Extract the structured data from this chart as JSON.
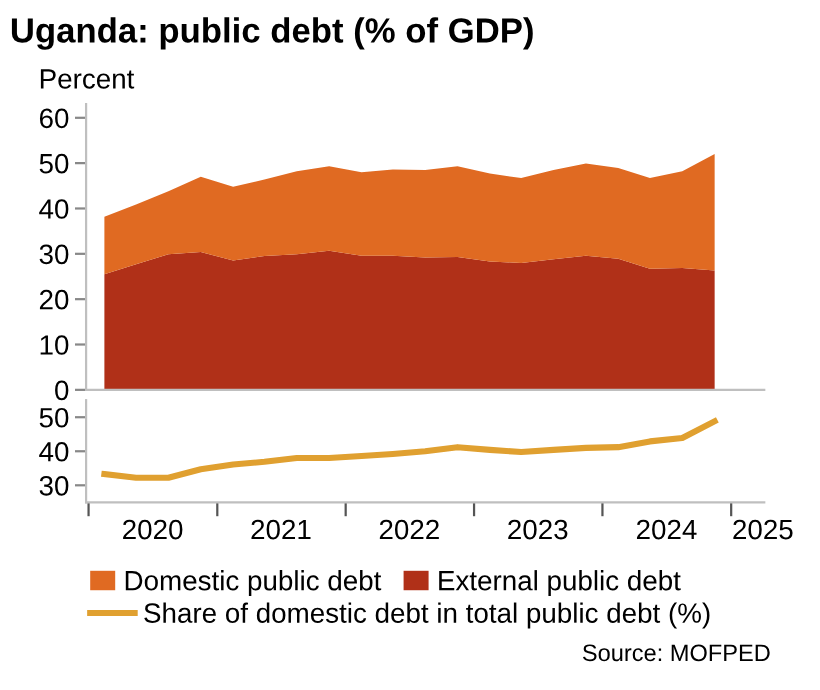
{
  "chart_data": [
    {
      "type": "area",
      "title": "Uganda: public debt (% of GDP)",
      "ylabel": "Percent",
      "stacked": true,
      "x": [
        "2020-02-15",
        "2020-05-15",
        "2020-08-15",
        "2020-11-15",
        "2021-02-15",
        "2021-05-15",
        "2021-08-15",
        "2021-11-15",
        "2022-02-15",
        "2022-05-15",
        "2022-08-15",
        "2022-11-15",
        "2023-02-15",
        "2023-05-15",
        "2023-08-15",
        "2023-11-15",
        "2024-02-15",
        "2024-05-15",
        "2024-08-15",
        "2024-11-15"
      ],
      "series": [
        {
          "name": "External public debt",
          "color": "#b03018",
          "values": [
            25.5,
            27.7,
            29.9,
            30.4,
            28.5,
            29.5,
            29.9,
            30.7,
            29.6,
            29.6,
            29.2,
            29.3,
            28.3,
            28.0,
            28.8,
            29.6,
            28.9,
            26.7,
            26.9,
            26.3
          ]
        },
        {
          "name": "Domestic public debt",
          "color": "#e06a22",
          "values": [
            12.7,
            13.2,
            13.9,
            16.6,
            16.3,
            16.9,
            18.3,
            18.6,
            18.4,
            19.0,
            19.3,
            20.0,
            19.4,
            18.7,
            19.7,
            20.3,
            20.0,
            20.0,
            21.3,
            25.7
          ]
        }
      ],
      "xlim": [
        "2019-12-25",
        "2025-04-05"
      ],
      "ylim": [
        0,
        63
      ],
      "yticks": [
        0,
        10,
        20,
        30,
        40,
        50,
        60
      ],
      "tick_labels": "y",
      "legend": "bottom",
      "grid": false
    },
    {
      "type": "line",
      "x": [
        "2020-02-15",
        "2020-05-15",
        "2020-08-15",
        "2020-11-15",
        "2021-02-15",
        "2021-05-15",
        "2021-08-15",
        "2021-11-15",
        "2022-02-15",
        "2022-05-15",
        "2022-08-15",
        "2022-11-15",
        "2023-02-15",
        "2023-05-15",
        "2023-08-15",
        "2023-11-15",
        "2024-02-15",
        "2024-05-15",
        "2024-08-15",
        "2024-11-15"
      ],
      "series": [
        {
          "name": "Share of domestic debt in total public debt (%)",
          "color": "#e0a030",
          "values": [
            33.3,
            32.2,
            32.2,
            34.7,
            36.1,
            36.9,
            38.0,
            38.0,
            38.6,
            39.2,
            40.0,
            41.2,
            40.4,
            39.8,
            40.4,
            41.0,
            41.2,
            42.9,
            43.9,
            48.8
          ]
        }
      ],
      "xlim": [
        "2019-12-25",
        "2025-04-05"
      ],
      "ylim": [
        25,
        55
      ],
      "yticks": [
        30,
        40,
        50
      ],
      "xticks": [
        {
          "value": "2020-01-01",
          "label": null
        },
        {
          "value": "2020-07-01",
          "label": "2020"
        },
        {
          "value": "2021-01-01",
          "label": null
        },
        {
          "value": "2021-07-01",
          "label": "2021"
        },
        {
          "value": "2022-01-01",
          "label": null
        },
        {
          "value": "2022-07-01",
          "label": "2022"
        },
        {
          "value": "2023-01-01",
          "label": null
        },
        {
          "value": "2023-07-01",
          "label": "2023"
        },
        {
          "value": "2024-01-01",
          "label": null
        },
        {
          "value": "2024-07-01",
          "label": "2024"
        },
        {
          "value": "2025-01-01",
          "label": null
        },
        {
          "value": "2025-04-01",
          "label": "2025"
        }
      ],
      "annotations": [
        "Source: MOFPED"
      ],
      "legend": "bottom",
      "grid": false,
      "marker": "none",
      "line_style": "solid"
    }
  ]
}
